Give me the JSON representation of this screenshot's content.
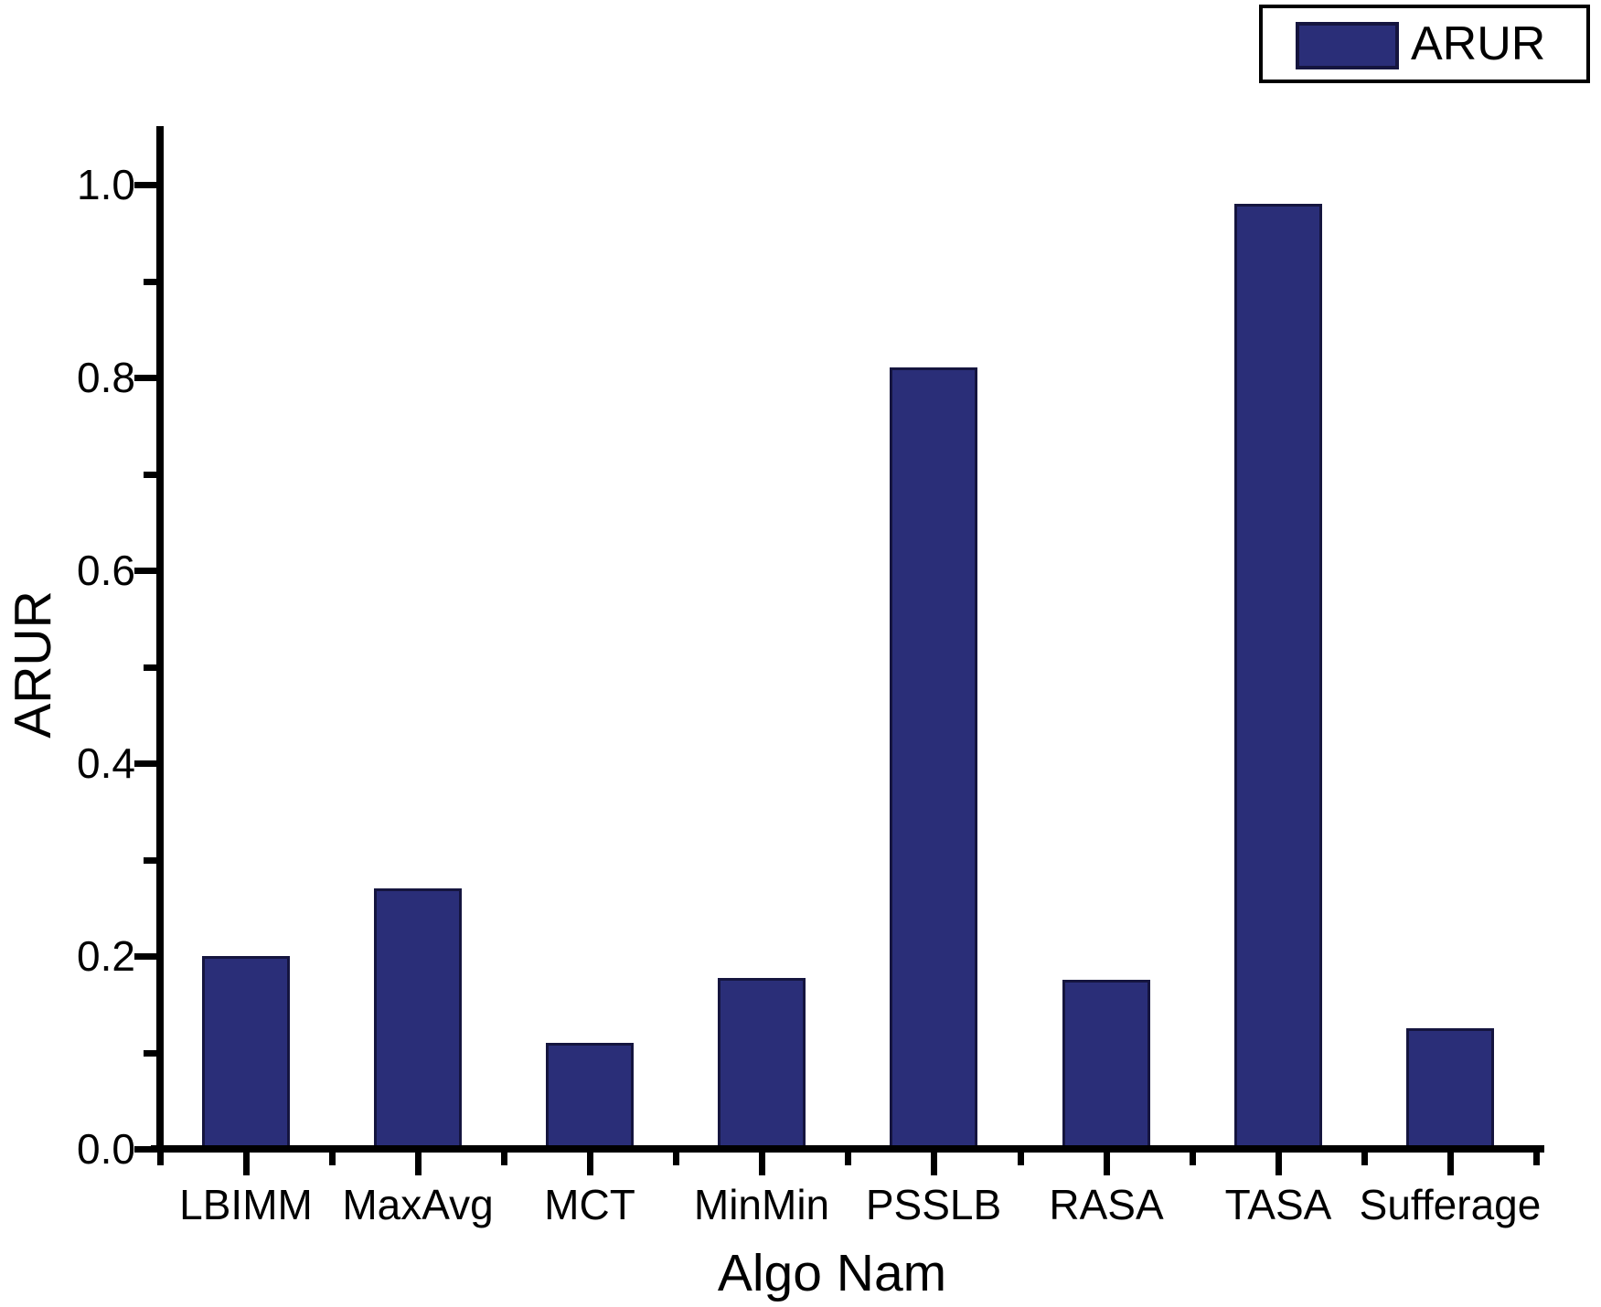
{
  "chart_data": {
    "type": "bar",
    "title": "",
    "xlabel": "Algo Nam",
    "ylabel": "ARUR",
    "legend": [
      "ARUR"
    ],
    "legend_position": "top-right",
    "grid": false,
    "categories": [
      "LBIMM",
      "MaxAvg",
      "MCT",
      "MinMin",
      "PSSLB",
      "RASA",
      "TASA",
      "Sufferage"
    ],
    "series": [
      {
        "name": "ARUR",
        "values": [
          0.2,
          0.27,
          0.11,
          0.177,
          0.81,
          0.175,
          0.98,
          0.125
        ]
      }
    ],
    "ylim": [
      0.0,
      1.06
    ],
    "y_ticks": [
      "0.0",
      "0.2",
      "0.4",
      "0.6",
      "0.8",
      "1.0"
    ],
    "colors": {
      "bar_fill": "#2a2e78",
      "bar_border": "#15153f",
      "axis": "#000000",
      "background": "#ffffff"
    }
  }
}
